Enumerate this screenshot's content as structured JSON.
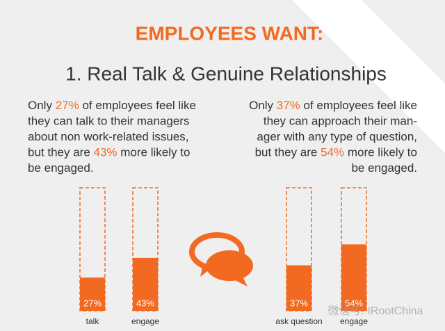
{
  "heading": "EMPLOYEES WANT:",
  "subtitle": "1. Real Talk & Genuine Relationships",
  "watermark": "微信号: IRootChina",
  "chart_data": [
    {
      "type": "bar",
      "align": "left",
      "text": [
        [
          "Only ",
          "27%",
          " of employees feel like"
        ],
        [
          "they can talk to their managers"
        ],
        [
          "about non work-related issues,"
        ],
        [
          "but they are ",
          "43%",
          " more likely to"
        ],
        [
          "be engaged."
        ]
      ],
      "categories": [
        "talk",
        "engage"
      ],
      "values": [
        27,
        43
      ],
      "value_labels": [
        "27%",
        "43%"
      ],
      "color": "#f26a21",
      "ylim": [
        0,
        100
      ]
    },
    {
      "type": "bar",
      "align": "right",
      "text": [
        [
          "Only ",
          "37%",
          " of employees feel like"
        ],
        [
          "they can approach their man-"
        ],
        [
          "ager with any type of question,"
        ],
        [
          "but they are ",
          "54%",
          " more likely to"
        ],
        [
          "be engaged."
        ]
      ],
      "categories": [
        "ask question",
        "engage"
      ],
      "values": [
        37,
        54
      ],
      "value_labels": [
        "37%",
        "54%"
      ],
      "color": "#f26a21",
      "ylim": [
        0,
        100
      ]
    }
  ]
}
